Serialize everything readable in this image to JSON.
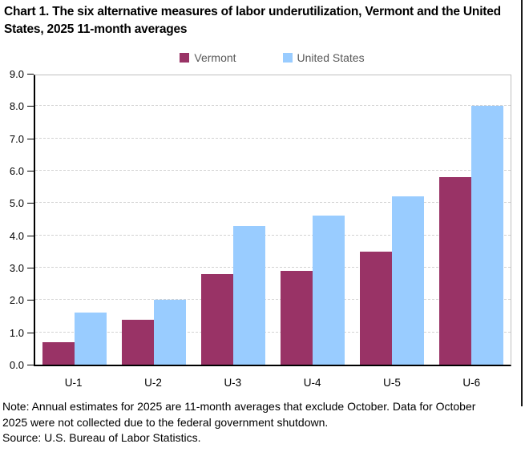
{
  "page": {
    "title": "Chart 1. The six alternative measures of labor underutilization, Vermont and the United States, 2025 11-month averages",
    "note_lines": [
      "Note: Annual estimates for 2025 are 11-month averages that exclude October. Data for October",
      "2025 were not collected due to the federal government shutdown."
    ],
    "source": "Source: U.S. Bureau of Labor Statistics."
  },
  "chart_data": {
    "type": "bar",
    "title": "Chart 1. The six alternative measures of labor underutilization, Vermont and the United States, 2025 11-month averages",
    "categories": [
      "U-1",
      "U-2",
      "U-3",
      "U-4",
      "U-5",
      "U-6"
    ],
    "series": [
      {
        "name": "Vermont",
        "color": "#993366",
        "values": [
          0.7,
          1.4,
          2.8,
          2.9,
          3.5,
          5.8
        ]
      },
      {
        "name": "United States",
        "color": "#99CCFF",
        "values": [
          1.6,
          2.0,
          4.3,
          4.6,
          5.2,
          8.0
        ]
      }
    ],
    "xlabel": "",
    "ylabel": "",
    "ylim": [
      0,
      9
    ],
    "ytick_step": 1.0,
    "ytick_labels": [
      "0.0",
      "1.0",
      "2.0",
      "3.0",
      "4.0",
      "5.0",
      "6.0",
      "7.0",
      "8.0",
      "9.0"
    ],
    "grid": "horizontal-dashed",
    "gridline_color": "#d2d2d2",
    "legend_position": "top-center",
    "axis_color": "#000000",
    "plot_border_color": "#bfbfbf"
  }
}
